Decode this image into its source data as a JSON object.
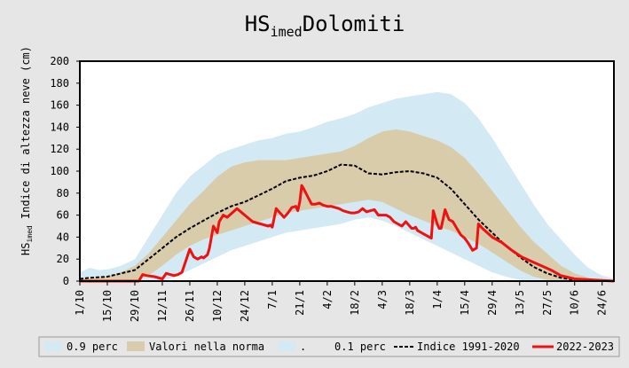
{
  "chart_data": {
    "type": "area",
    "title_main": "HS",
    "title_sub": "imed",
    "title_rest": "Dolomiti",
    "ylabel_main": "HS",
    "ylabel_sub": "imed",
    "ylabel_rest": " Indice di altezza neve  (cm)",
    "ylim": [
      0,
      200
    ],
    "yticks": [
      "0",
      "20",
      "40",
      "60",
      "80",
      "100",
      "120",
      "140",
      "160",
      "180",
      "200"
    ],
    "xlim": [
      0,
      272
    ],
    "categories": [
      "1/10",
      "15/10",
      "29/10",
      "12/11",
      "26/11",
      "10/12",
      "24/12",
      "7/1",
      "21/1",
      "4/2",
      "18/2",
      "4/3",
      "18/3",
      "1/4",
      "15/4",
      "29/4",
      "13/5",
      "27/5",
      "10/6",
      "24/6"
    ],
    "legend": {
      "p90": "0.9 perc",
      "norm": "Valori nella norma",
      "dot": ".",
      "p10": "0.1 perc",
      "indice": "Indice 1991-2020",
      "current": "2022-2023"
    },
    "colors": {
      "background": "#e6e6e6",
      "outer_band": "#d3e9f3",
      "norm_band": "#d9ccaa",
      "indice": "#000000",
      "current": "#ee1111"
    },
    "series": [
      {
        "name": "0.9 perc",
        "x": [
          0,
          5,
          10,
          15,
          21,
          28,
          35,
          42,
          49,
          56,
          63,
          70,
          77,
          84,
          91,
          98,
          105,
          112,
          119,
          126,
          133,
          140,
          147,
          154,
          161,
          168,
          175,
          182,
          189,
          196,
          203,
          210,
          217,
          224,
          231,
          238,
          245,
          252,
          259,
          266,
          272
        ],
        "y": [
          8,
          12,
          10,
          11,
          14,
          20,
          40,
          60,
          80,
          95,
          105,
          115,
          120,
          124,
          128,
          130,
          134,
          136,
          140,
          145,
          148,
          152,
          158,
          162,
          166,
          168,
          170,
          172,
          170,
          162,
          148,
          130,
          110,
          90,
          70,
          52,
          38,
          24,
          12,
          5,
          2
        ]
      },
      {
        "name": "Valori nella norma (upper)",
        "x": [
          0,
          14,
          21,
          28,
          35,
          42,
          49,
          56,
          63,
          70,
          77,
          84,
          91,
          98,
          105,
          112,
          119,
          126,
          133,
          140,
          147,
          154,
          161,
          168,
          175,
          182,
          189,
          196,
          203,
          210,
          217,
          224,
          231,
          238,
          245,
          252,
          259,
          266,
          272
        ],
        "y": [
          2,
          4,
          8,
          14,
          25,
          40,
          55,
          70,
          82,
          95,
          104,
          108,
          110,
          110,
          110,
          112,
          114,
          116,
          118,
          123,
          130,
          136,
          138,
          136,
          132,
          128,
          122,
          112,
          98,
          82,
          66,
          50,
          36,
          25,
          14,
          7,
          3,
          1,
          0
        ]
      },
      {
        "name": "Valori nella norma (lower)",
        "x": [
          0,
          28,
          35,
          42,
          49,
          56,
          63,
          70,
          77,
          84,
          91,
          98,
          105,
          112,
          119,
          126,
          133,
          140,
          147,
          154,
          161,
          168,
          175,
          182,
          189,
          196,
          203,
          210,
          217,
          224,
          231,
          238,
          245,
          252,
          272
        ],
        "y": [
          0,
          0,
          5,
          14,
          24,
          32,
          38,
          42,
          46,
          50,
          54,
          58,
          62,
          64,
          66,
          68,
          70,
          72,
          74,
          72,
          66,
          60,
          55,
          50,
          46,
          40,
          34,
          26,
          18,
          10,
          4,
          1,
          0,
          0,
          0
        ]
      },
      {
        "name": "0.1 perc",
        "x": [
          0,
          42,
          49,
          56,
          63,
          70,
          77,
          84,
          91,
          98,
          105,
          112,
          119,
          126,
          133,
          140,
          147,
          154,
          161,
          168,
          175,
          182,
          189,
          196,
          203,
          210,
          217,
          224,
          231,
          238,
          272
        ],
        "y": [
          0,
          0,
          4,
          10,
          16,
          22,
          28,
          32,
          36,
          40,
          44,
          46,
          48,
          50,
          52,
          56,
          58,
          55,
          50,
          44,
          38,
          32,
          26,
          20,
          14,
          8,
          4,
          1,
          0,
          0,
          0
        ]
      },
      {
        "name": "Indice 1991-2020",
        "x": [
          0,
          5,
          14,
          21,
          28,
          35,
          42,
          49,
          56,
          63,
          70,
          77,
          84,
          91,
          98,
          105,
          112,
          119,
          126,
          133,
          140,
          147,
          154,
          161,
          168,
          175,
          182,
          189,
          196,
          203,
          210,
          217,
          224,
          231,
          238,
          245,
          252,
          259,
          266,
          272
        ],
        "y": [
          2,
          3,
          4,
          7,
          10,
          20,
          30,
          40,
          48,
          55,
          62,
          68,
          72,
          78,
          84,
          91,
          94,
          96,
          100,
          106,
          105,
          98,
          97,
          99,
          100,
          98,
          94,
          84,
          70,
          56,
          44,
          32,
          22,
          13,
          7,
          3,
          1,
          0,
          0,
          0
        ]
      },
      {
        "name": "2022-2023",
        "x": [
          0,
          30,
          32,
          34,
          38,
          42,
          44,
          46,
          48,
          50,
          52,
          56,
          58,
          60,
          62,
          63,
          65,
          66,
          68,
          70,
          71,
          73,
          75,
          80,
          84,
          88,
          92,
          96,
          97,
          98,
          100,
          104,
          106,
          108,
          110,
          111,
          112,
          113,
          114,
          116,
          118,
          120,
          122,
          124,
          126,
          128,
          130,
          132,
          134,
          136,
          138,
          140,
          142,
          144,
          146,
          148,
          150,
          152,
          154,
          156,
          158,
          160,
          162,
          164,
          166,
          168,
          169,
          170,
          171,
          172,
          174,
          176,
          178,
          179,
          180,
          182,
          183,
          184,
          186,
          188,
          190,
          192,
          194,
          196,
          198,
          200,
          202,
          203,
          205,
          210,
          215,
          220,
          225,
          230,
          235,
          240,
          245,
          252,
          272
        ],
        "y": [
          0,
          0,
          6,
          5,
          4,
          2,
          7,
          6,
          5,
          6,
          8,
          29,
          22,
          20,
          22,
          21,
          24,
          30,
          50,
          44,
          54,
          60,
          58,
          66,
          60,
          54,
          52,
          50,
          51,
          49,
          66,
          58,
          62,
          67,
          68,
          64,
          72,
          87,
          84,
          77,
          70,
          70,
          71,
          69,
          68,
          68,
          67,
          66,
          64,
          63,
          62,
          62,
          63,
          66,
          63,
          64,
          65,
          60,
          60,
          60,
          58,
          54,
          52,
          50,
          54,
          50,
          48,
          48,
          49,
          46,
          44,
          42,
          40,
          39,
          64,
          52,
          48,
          48,
          65,
          56,
          54,
          48,
          42,
          39,
          34,
          28,
          30,
          52,
          48,
          40,
          35,
          28,
          22,
          18,
          14,
          10,
          5,
          2,
          0
        ]
      }
    ]
  }
}
